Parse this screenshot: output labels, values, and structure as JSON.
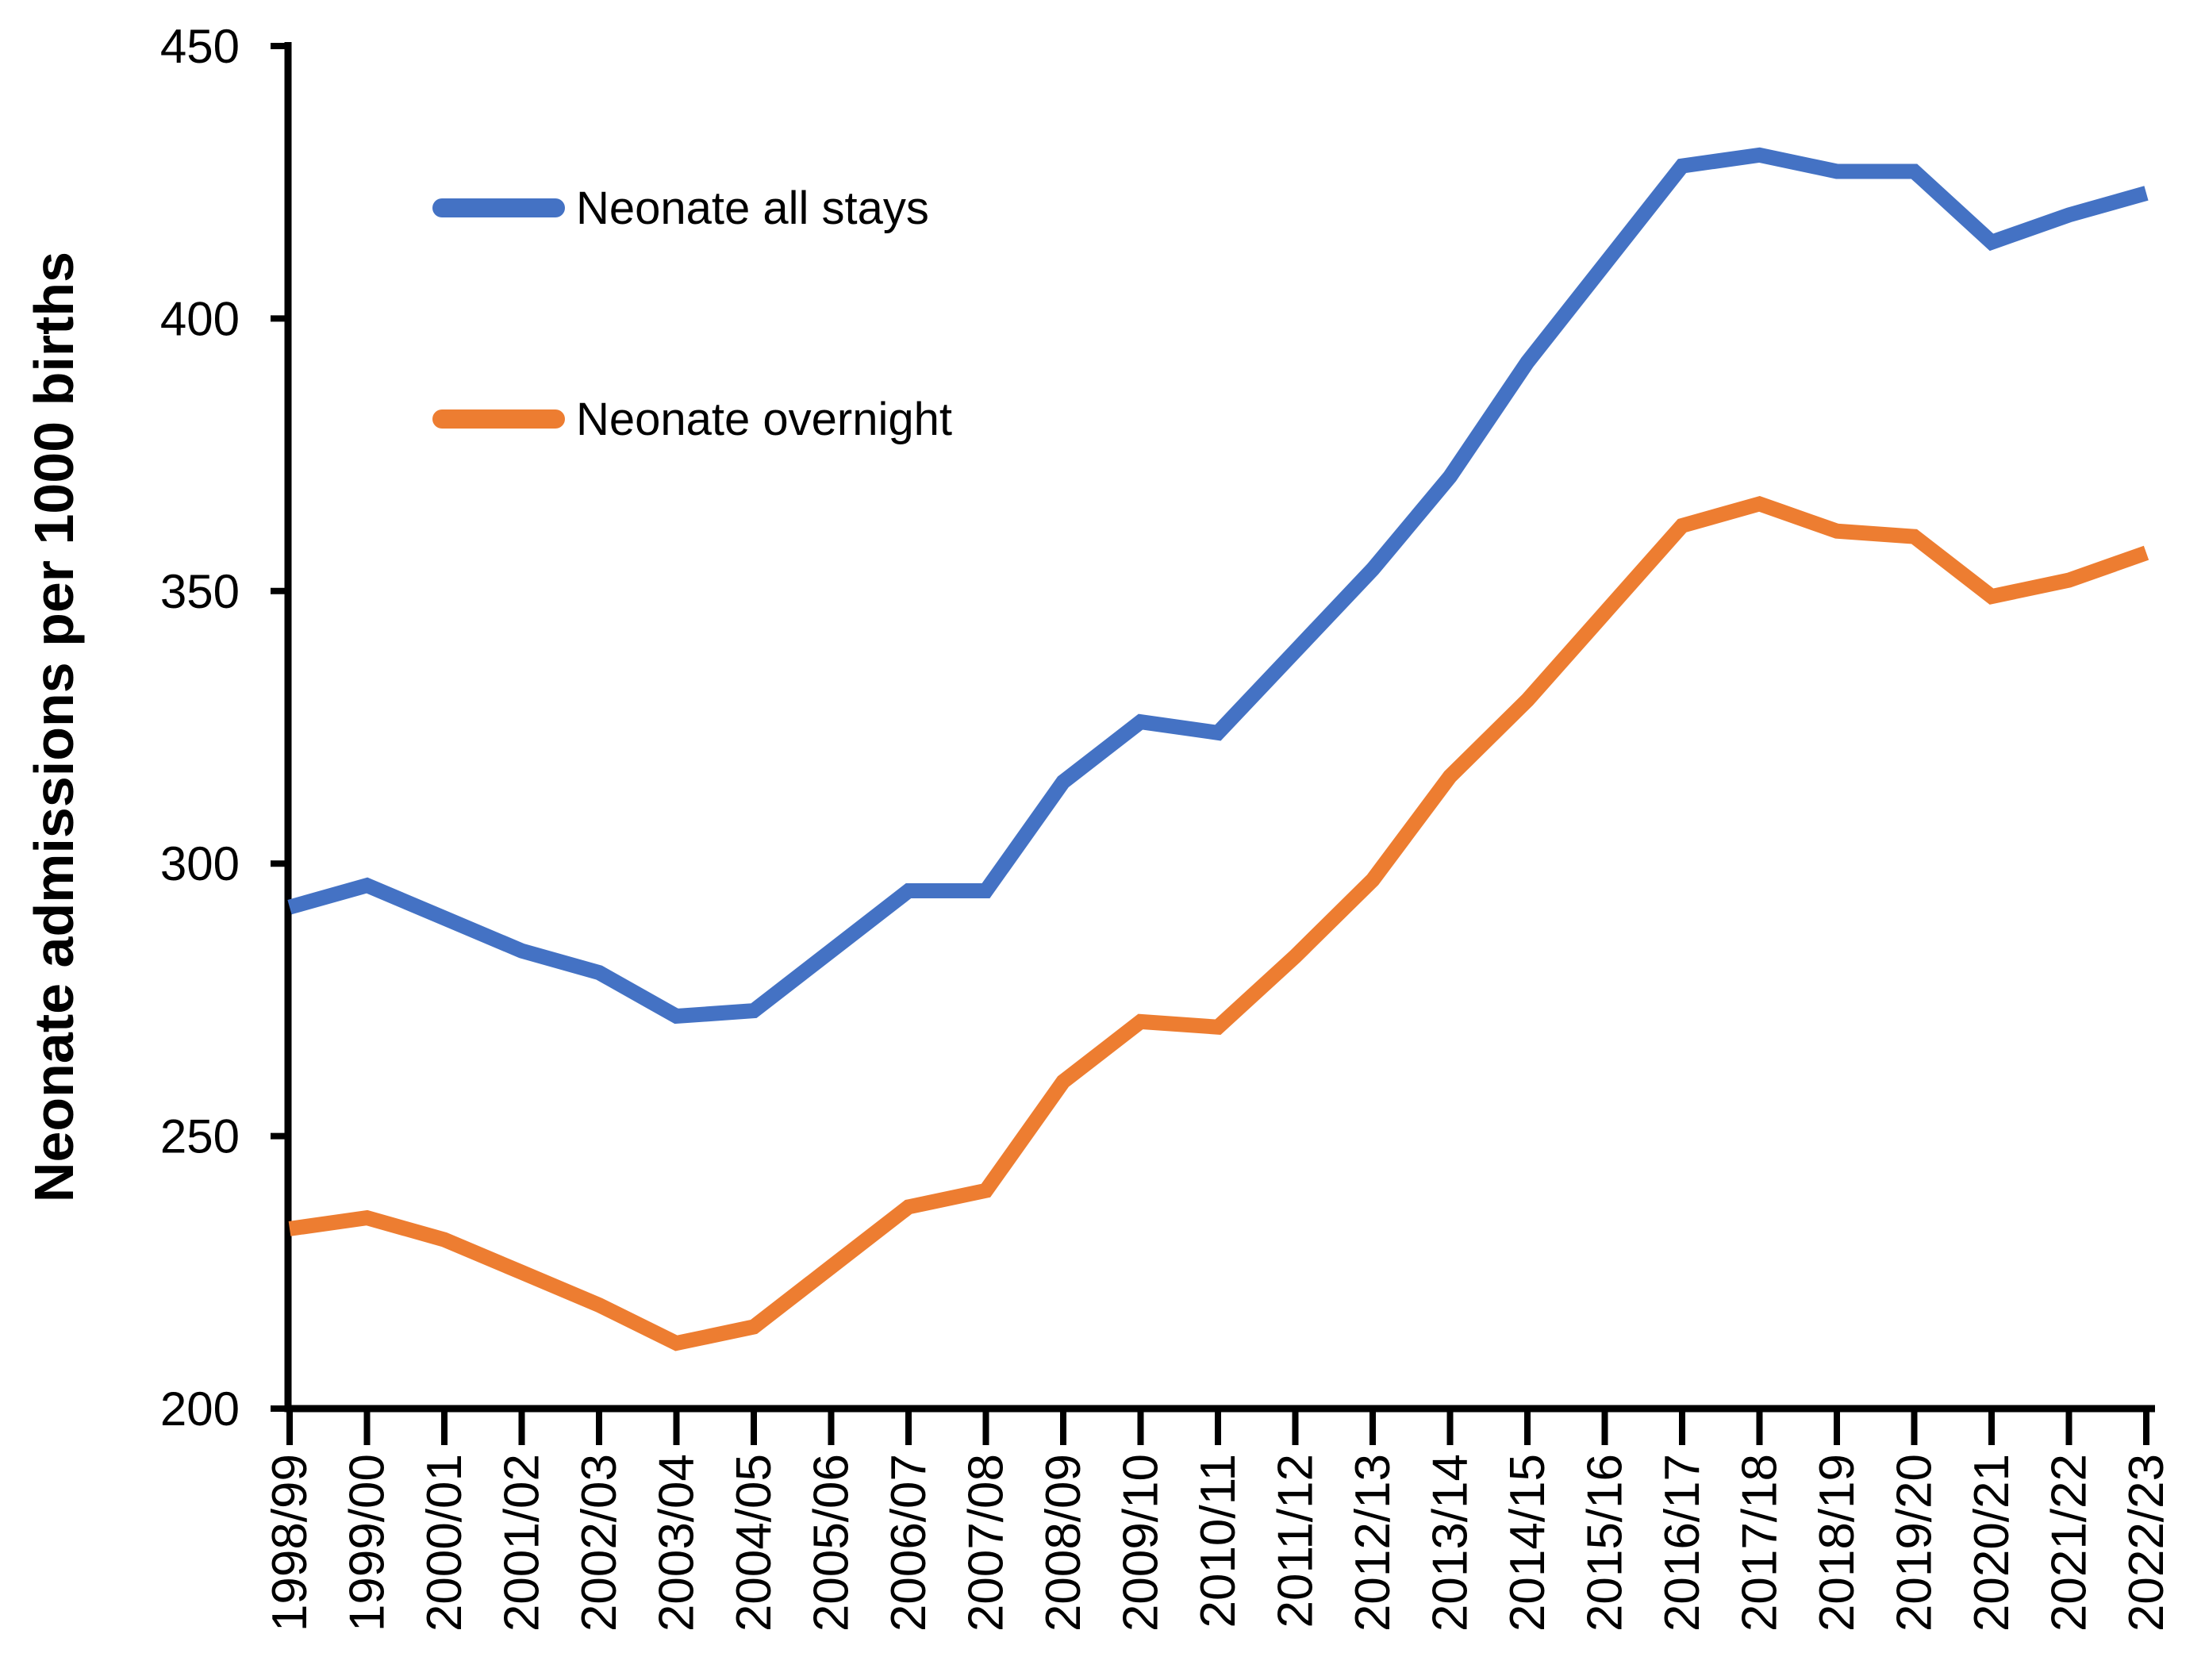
{
  "chart_data": {
    "type": "line",
    "title": "",
    "xlabel": "",
    "ylabel": "Neonate admissions per 1000 births",
    "ylim": [
      200,
      450
    ],
    "yticks": [
      200,
      250,
      300,
      350,
      400,
      450
    ],
    "grid": false,
    "legend_position": "inside-top-left",
    "background_color": "#ffffff",
    "axis_color": "#000000",
    "categories": [
      "1998/99",
      "1999/00",
      "2000/01",
      "2001/02",
      "2002/03",
      "2003/04",
      "2004/05",
      "2005/06",
      "2006/07",
      "2007/08",
      "2008/09",
      "2009/10",
      "2010/11",
      "2011/12",
      "2012/13",
      "2013/14",
      "2014/15",
      "2015/16",
      "2016/17",
      "2017/18",
      "2018/19",
      "2019/20",
      "2020/21",
      "2021/22",
      "2022/23"
    ],
    "series": [
      {
        "name": "Neonate all stays",
        "color": "#4472C4",
        "values": [
          292,
          296,
          290,
          284,
          280,
          272,
          273,
          284,
          295,
          295,
          315,
          326,
          324,
          339,
          354,
          371,
          392,
          410,
          428,
          430,
          427,
          427,
          414,
          419,
          423
        ]
      },
      {
        "name": "Neonate overnight",
        "color": "#ED7D31",
        "values": [
          233,
          235,
          231,
          225,
          219,
          212,
          215,
          226,
          237,
          240,
          260,
          271,
          270,
          283,
          297,
          316,
          330,
          346,
          362,
          366,
          361,
          360,
          349,
          352,
          357
        ]
      }
    ]
  }
}
